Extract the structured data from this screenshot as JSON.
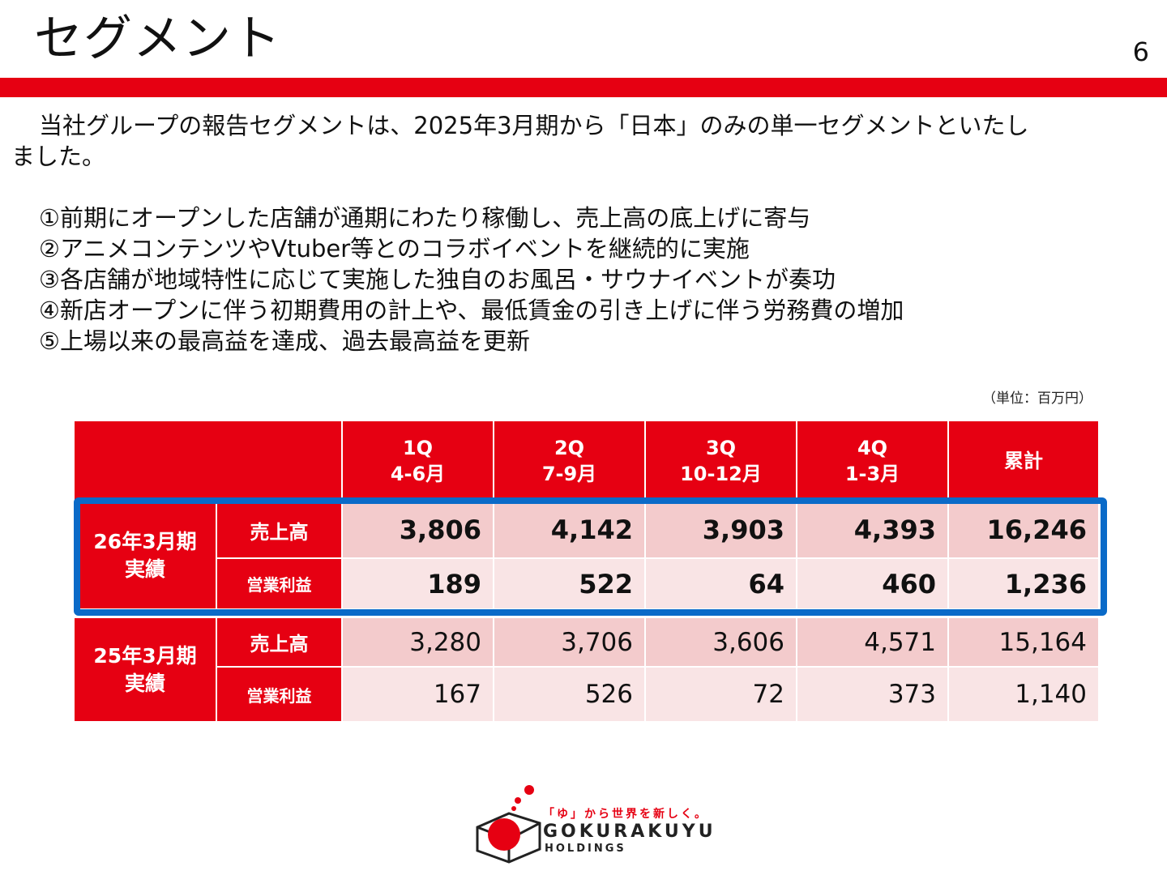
{
  "header": {
    "title": "セグメント",
    "page_number": "6"
  },
  "intro": {
    "line1": "当社グループの報告セグメントは、2025年3月期から「日本」のみの単一セグメントといたし",
    "line2": "ました。"
  },
  "points": [
    "①前期にオープンした店舗が通期にわたり稼働し、売上高の底上げに寄与",
    "②アニメコンテンツやVtuber等とのコラボイベントを継続的に実施",
    "③各店舗が地域特性に応じて実施した独自のお風呂・サウナイベントが奏功",
    "④新店オープンに伴う初期費用の計上や、最低賃金の引き上げに伴う労務費の増加",
    "⑤上場以来の最高益を達成、過去最高益を更新"
  ],
  "table": {
    "unit": "（単位：百万円）",
    "columns": [
      {
        "q": "1Q",
        "months": "4-6月"
      },
      {
        "q": "2Q",
        "months": "7-9月"
      },
      {
        "q": "3Q",
        "months": "10-12月"
      },
      {
        "q": "4Q",
        "months": "1-3月"
      },
      {
        "q": "累計",
        "months": ""
      }
    ],
    "groups": [
      {
        "label_l1": "26年3月期",
        "label_l2": "実績",
        "rows": [
          {
            "metric": "売上高",
            "values": [
              "3,806",
              "4,142",
              "3,903",
              "4,393",
              "16,246"
            ]
          },
          {
            "metric": "営業利益",
            "values": [
              "189",
              "522",
              "64",
              "460",
              "1,236"
            ]
          }
        ]
      },
      {
        "label_l1": "25年3月期",
        "label_l2": "実績",
        "rows": [
          {
            "metric": "売上高",
            "values": [
              "3,280",
              "3,706",
              "3,606",
              "4,571",
              "15,164"
            ]
          },
          {
            "metric": "営業利益",
            "values": [
              "167",
              "526",
              "72",
              "373",
              "1,140"
            ]
          }
        ]
      }
    ]
  },
  "logo": {
    "tagline": "「ゆ」から世界を新しく。",
    "name": "GOKURAKUYU",
    "sub": "HOLDINGS"
  },
  "colors": {
    "accent": "#e60012",
    "highlight": "#0a6ac8",
    "cell_dark": "#f3cbcc",
    "cell_light": "#f9e4e5"
  }
}
